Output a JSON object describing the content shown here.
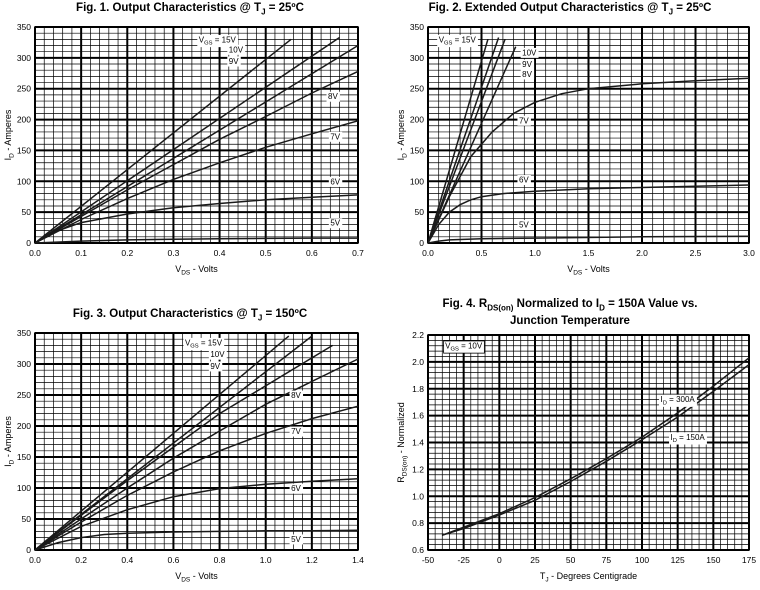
{
  "chart_data": [
    {
      "type": "line",
      "title": "Fig. 1. Output Characteristics @ T",
      "title_sub": "J",
      "title_tail": " = 25ºC",
      "xlabel": "V",
      "xlabel_sub": "DS",
      "xlabel_tail": " - Volts",
      "ylabel": "I",
      "ylabel_sub": "D",
      "ylabel_tail": " - Amperes",
      "xlim": [
        0,
        0.7
      ],
      "ylim": [
        0,
        350
      ],
      "xticks": [
        "0.0",
        "0.1",
        "0.2",
        "0.3",
        "0.4",
        "0.5",
        "0.6",
        "0.7"
      ],
      "yticks": [
        "0",
        "50",
        "100",
        "150",
        "200",
        "250",
        "300",
        "350"
      ],
      "major_x": [
        0,
        0.1,
        0.2,
        0.3,
        0.4,
        0.5,
        0.6,
        0.7
      ],
      "major_y": [
        0,
        50,
        100,
        150,
        200,
        250,
        300,
        350
      ],
      "minor_x_count": 4,
      "minor_y_count": 4,
      "grid": true,
      "series": [
        {
          "name": "V",
          "name_sub": "GS",
          "name_tail": " = 15V",
          "x": [
            0,
            0.555
          ],
          "y": [
            0,
            330
          ]
        },
        {
          "name": "10V",
          "x": [
            0,
            0.66
          ],
          "y": [
            0,
            333
          ]
        },
        {
          "name": "9V",
          "x": [
            0,
            0.7
          ],
          "y": [
            0,
            320
          ]
        },
        {
          "name": "8V",
          "x": [
            0,
            0.1,
            0.2,
            0.3,
            0.4,
            0.5,
            0.6,
            0.7
          ],
          "y": [
            0,
            43,
            86,
            127,
            168,
            205,
            243,
            278
          ]
        },
        {
          "name": "7V",
          "x": [
            0,
            0.1,
            0.2,
            0.3,
            0.4,
            0.5,
            0.6,
            0.7
          ],
          "y": [
            0,
            38,
            72,
            103,
            130,
            155,
            177,
            198
          ]
        },
        {
          "name": "6V",
          "x": [
            0,
            0.05,
            0.1,
            0.2,
            0.3,
            0.4,
            0.5,
            0.6,
            0.7
          ],
          "y": [
            0,
            20,
            33,
            47,
            57,
            64,
            70,
            74,
            78
          ]
        },
        {
          "name": "5V",
          "x": [
            0,
            0.1,
            0.2,
            0.3,
            0.4,
            0.5,
            0.6,
            0.7
          ],
          "y": [
            0,
            3,
            5,
            6,
            7,
            7.5,
            8,
            8
          ]
        }
      ],
      "annotations": [
        {
          "text": "V",
          "sub": "GS",
          "tail": " = 15V",
          "x": 0.355,
          "y": 325
        },
        {
          "text": "10V",
          "x": 0.42,
          "y": 309
        },
        {
          "text": "9V",
          "x": 0.42,
          "y": 290
        },
        {
          "text": "8V",
          "x": 0.635,
          "y": 233
        },
        {
          "text": "7V",
          "x": 0.64,
          "y": 168
        },
        {
          "text": "6V",
          "x": 0.64,
          "y": 95
        },
        {
          "text": "5V",
          "x": 0.64,
          "y": 28
        }
      ]
    },
    {
      "type": "line",
      "title": "Fig. 2. Extended Output Characteristics @ T",
      "title_sub": "J",
      "title_tail": " = 25ºC",
      "xlabel": "V",
      "xlabel_sub": "DS",
      "xlabel_tail": " - Volts",
      "ylabel": "I",
      "ylabel_sub": "D",
      "ylabel_tail": " - Amperes",
      "xlim": [
        0,
        3.0
      ],
      "ylim": [
        0,
        350
      ],
      "xticks": [
        "0.0",
        "0.5",
        "1.0",
        "1.5",
        "2.0",
        "2.5",
        "3.0"
      ],
      "yticks": [
        "0",
        "50",
        "100",
        "150",
        "200",
        "250",
        "300",
        "350"
      ],
      "major_x": [
        0,
        0.5,
        1.0,
        1.5,
        2.0,
        2.5,
        3.0
      ],
      "major_y": [
        0,
        50,
        100,
        150,
        200,
        250,
        300,
        350
      ],
      "minor_x_count": 4,
      "minor_y_count": 4,
      "grid": true,
      "series": [
        {
          "name": "V",
          "name_sub": "GS",
          "name_tail": " = 15V",
          "x": [
            0,
            0.56
          ],
          "y": [
            0,
            330
          ]
        },
        {
          "name": "10V",
          "x": [
            0,
            0.66
          ],
          "y": [
            0,
            333
          ]
        },
        {
          "name": "9V",
          "x": [
            0,
            0.72
          ],
          "y": [
            0,
            330
          ]
        },
        {
          "name": "8V",
          "x": [
            0,
            0.82
          ],
          "y": [
            0,
            318
          ]
        },
        {
          "name": "7V",
          "x": [
            0,
            0.2,
            0.4,
            0.6,
            0.8,
            1.0,
            1.25,
            1.5,
            2.0,
            2.5,
            3.0
          ],
          "y": [
            0,
            75,
            140,
            180,
            210,
            228,
            242,
            250,
            258,
            263,
            267
          ]
        },
        {
          "name": "6V",
          "x": [
            0,
            0.1,
            0.2,
            0.3,
            0.4,
            0.5,
            0.7,
            1.0,
            1.5,
            2.0,
            2.5,
            3.0
          ],
          "y": [
            0,
            30,
            50,
            62,
            70,
            75,
            80,
            84,
            88,
            90,
            92,
            94
          ]
        },
        {
          "name": "5V",
          "x": [
            0,
            0.1,
            0.2,
            0.5,
            1.0,
            2.0,
            3.0
          ],
          "y": [
            0,
            3,
            5,
            7,
            8,
            10,
            11
          ]
        }
      ],
      "annotations": [
        {
          "text": "V",
          "sub": "GS",
          "tail": " = 15V",
          "x": 0.1,
          "y": 325
        },
        {
          "text": "10V",
          "x": 0.88,
          "y": 304
        },
        {
          "text": "9V",
          "x": 0.88,
          "y": 285
        },
        {
          "text": "8V",
          "x": 0.88,
          "y": 269
        },
        {
          "text": "7V",
          "x": 0.85,
          "y": 194
        },
        {
          "text": "6V",
          "x": 0.85,
          "y": 98
        },
        {
          "text": "5V",
          "x": 0.85,
          "y": 25
        }
      ]
    },
    {
      "type": "line",
      "title": "Fig. 3. Output Characteristics @ T",
      "title_sub": "J",
      "title_tail": " = 150ºC",
      "xlabel": "V",
      "xlabel_sub": "DS",
      "xlabel_tail": " - Volts",
      "ylabel": "I",
      "ylabel_sub": "D",
      "ylabel_tail": " - Amperes",
      "xlim": [
        0,
        1.4
      ],
      "ylim": [
        0,
        350
      ],
      "xticks": [
        "0.0",
        "0.2",
        "0.4",
        "0.6",
        "0.8",
        "1.0",
        "1.2",
        "1.4"
      ],
      "yticks": [
        "0",
        "50",
        "100",
        "150",
        "200",
        "250",
        "300",
        "350"
      ],
      "major_x": [
        0,
        0.2,
        0.4,
        0.6,
        0.8,
        1.0,
        1.2,
        1.4
      ],
      "major_y": [
        0,
        50,
        100,
        150,
        200,
        250,
        300,
        350
      ],
      "minor_x_count": 4,
      "minor_y_count": 4,
      "grid": true,
      "series": [
        {
          "name": "V",
          "name_sub": "GS",
          "name_tail": " = 15V",
          "x": [
            0,
            1.1
          ],
          "y": [
            0,
            345
          ]
        },
        {
          "name": "10V",
          "x": [
            0,
            1.2
          ],
          "y": [
            0,
            345
          ]
        },
        {
          "name": "9V",
          "x": [
            0,
            0.4,
            0.8,
            1.29
          ],
          "y": [
            0,
            112,
            220,
            330
          ]
        },
        {
          "name": "8V",
          "x": [
            0,
            0.2,
            0.4,
            0.6,
            0.8,
            1.0,
            1.2,
            1.4
          ],
          "y": [
            0,
            50,
            100,
            148,
            192,
            235,
            272,
            308
          ]
        },
        {
          "name": "7V",
          "x": [
            0,
            0.2,
            0.4,
            0.6,
            0.8,
            1.0,
            1.2,
            1.4
          ],
          "y": [
            0,
            45,
            88,
            126,
            160,
            188,
            212,
            232
          ]
        },
        {
          "name": "6V",
          "x": [
            0,
            0.2,
            0.4,
            0.6,
            0.8,
            1.0,
            1.2,
            1.4
          ],
          "y": [
            0,
            38,
            65,
            86,
            99,
            106,
            111,
            115
          ]
        },
        {
          "name": "5V",
          "x": [
            0,
            0.1,
            0.2,
            0.3,
            0.4,
            0.6,
            0.8,
            1.0,
            1.2,
            1.4
          ],
          "y": [
            0,
            12,
            20,
            25,
            27,
            29,
            30,
            31,
            31,
            32
          ]
        }
      ],
      "annotations": [
        {
          "text": "V",
          "sub": "GS",
          "tail": " = 15V",
          "x": 0.65,
          "y": 330
        },
        {
          "text": "10V",
          "x": 0.76,
          "y": 311
        },
        {
          "text": "9V",
          "x": 0.76,
          "y": 292
        },
        {
          "text": "8V",
          "x": 1.11,
          "y": 245
        },
        {
          "text": "7V",
          "x": 1.11,
          "y": 187
        },
        {
          "text": "6V",
          "x": 1.11,
          "y": 95
        },
        {
          "text": "5V",
          "x": 1.11,
          "y": 13
        }
      ]
    },
    {
      "type": "line",
      "title": "Fig. 4. R",
      "title_sub": "DS(on)",
      "title_tail": " Normalized to I",
      "title_sub2": "D",
      "title_tail2": " = 150A Value vs.",
      "title_line2": "Junction Temperature",
      "xlabel": "T",
      "xlabel_sub": "J",
      "xlabel_tail": " - Degrees Centigrade",
      "ylabel": "R",
      "ylabel_sub": "DS(on)",
      "ylabel_tail": " - Normalized",
      "xlim": [
        -50,
        175
      ],
      "ylim": [
        0.6,
        2.2
      ],
      "xticks": [
        "-50",
        "-25",
        "0",
        "25",
        "50",
        "75",
        "100",
        "125",
        "150",
        "175"
      ],
      "yticks": [
        "0.6",
        "0.8",
        "1.0",
        "1.2",
        "1.4",
        "1.6",
        "1.8",
        "2.0",
        "2.2"
      ],
      "major_x": [
        -50,
        -25,
        0,
        25,
        50,
        75,
        100,
        125,
        150,
        175
      ],
      "major_y": [
        0.6,
        0.8,
        1.0,
        1.2,
        1.4,
        1.6,
        1.8,
        2.0,
        2.2
      ],
      "minor_x_count": 4,
      "minor_y_count": 4,
      "grid": true,
      "series": [
        {
          "name": "I",
          "name_sub": "D",
          "name_tail": " = 300A",
          "x": [
            -40,
            -25,
            0,
            25,
            50,
            75,
            100,
            125,
            150,
            175
          ],
          "y": [
            0.71,
            0.77,
            0.87,
            0.99,
            1.13,
            1.28,
            1.44,
            1.62,
            1.82,
            2.03
          ]
        },
        {
          "name": "I",
          "name_sub": "D",
          "name_tail": " = 150A",
          "x": [
            -40,
            -25,
            0,
            25,
            50,
            75,
            100,
            125,
            150,
            175
          ],
          "y": [
            0.71,
            0.76,
            0.86,
            0.97,
            1.11,
            1.26,
            1.42,
            1.59,
            1.78,
            1.98
          ]
        }
      ],
      "annotations": [
        {
          "text": "V",
          "sub": "GS",
          "tail": " = 10V",
          "x": -38,
          "y": 2.1,
          "boxed": true
        },
        {
          "text": "I",
          "sub": "D",
          "tail": " = 300A",
          "x": 113,
          "y": 1.7
        },
        {
          "text": "I",
          "sub": "D",
          "tail": " = 150A",
          "x": 120,
          "y": 1.42
        }
      ]
    }
  ]
}
